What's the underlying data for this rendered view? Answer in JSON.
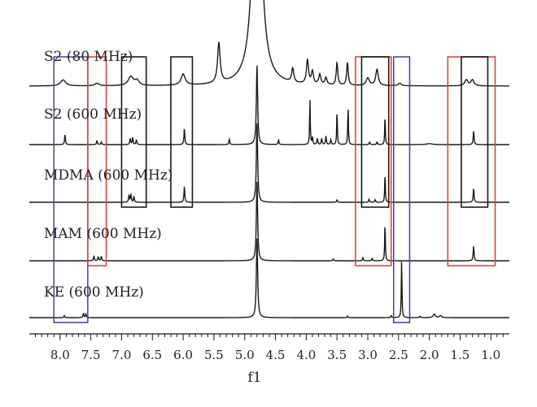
{
  "chart_data": {
    "type": "line",
    "title": "",
    "xlabel": "f1",
    "ylabel": "",
    "xlim": [
      8.5,
      0.7
    ],
    "x_reversed": true,
    "grid": false,
    "legend": "none",
    "x_ticks": [
      "8.0",
      "7.5",
      "7.0",
      "6.5",
      "6.0",
      "5.5",
      "5.0",
      "4.5",
      "4.0",
      "3.5",
      "3.0",
      "2.5",
      "2.0",
      "1.5",
      "1.0"
    ],
    "x_tick_values": [
      8.0,
      7.5,
      7.0,
      6.5,
      6.0,
      5.5,
      5.0,
      4.5,
      4.0,
      3.5,
      3.0,
      2.5,
      2.0,
      1.5,
      1.0
    ],
    "series": [
      {
        "name": "S2 (80 MHz)",
        "color": "#1a1a1a",
        "peaks": [
          {
            "x": 7.95,
            "h": 0.12,
            "w": 0.05
          },
          {
            "x": 7.4,
            "h": 0.05,
            "w": 0.04
          },
          {
            "x": 6.85,
            "h": 0.18,
            "w": 0.05
          },
          {
            "x": 6.75,
            "h": 0.1,
            "w": 0.04
          },
          {
            "x": 6.0,
            "h": 0.22,
            "w": 0.04
          },
          {
            "x": 5.42,
            "h": 0.8,
            "w": 0.025
          },
          {
            "x": 4.8,
            "h": 6.0,
            "w": 0.07
          },
          {
            "x": 4.22,
            "h": 0.28,
            "w": 0.02
          },
          {
            "x": 3.98,
            "h": 0.48,
            "w": 0.02
          },
          {
            "x": 3.9,
            "h": 0.25,
            "w": 0.02
          },
          {
            "x": 3.78,
            "h": 0.2,
            "w": 0.02
          },
          {
            "x": 3.68,
            "h": 0.14,
            "w": 0.02
          },
          {
            "x": 3.5,
            "h": 0.45,
            "w": 0.015
          },
          {
            "x": 3.33,
            "h": 0.45,
            "w": 0.015
          },
          {
            "x": 3.0,
            "h": 0.15,
            "w": 0.03
          },
          {
            "x": 2.85,
            "h": 0.32,
            "w": 0.025
          },
          {
            "x": 2.48,
            "h": 0.05,
            "w": 0.03
          },
          {
            "x": 1.4,
            "h": 0.12,
            "w": 0.03
          },
          {
            "x": 1.3,
            "h": 0.12,
            "w": 0.03
          }
        ]
      },
      {
        "name": "S2 (600 MHz)",
        "color": "#1a1a1a",
        "peaks": [
          {
            "x": 7.92,
            "h": 0.2,
            "w": 0.008
          },
          {
            "x": 7.4,
            "h": 0.08,
            "w": 0.008
          },
          {
            "x": 7.33,
            "h": 0.05,
            "w": 0.008
          },
          {
            "x": 6.86,
            "h": 0.12,
            "w": 0.008
          },
          {
            "x": 6.82,
            "h": 0.14,
            "w": 0.008
          },
          {
            "x": 6.76,
            "h": 0.1,
            "w": 0.008
          },
          {
            "x": 5.98,
            "h": 0.32,
            "w": 0.008
          },
          {
            "x": 5.25,
            "h": 0.11,
            "w": 0.008
          },
          {
            "x": 4.8,
            "h": 1.6,
            "w": 0.012
          },
          {
            "x": 4.45,
            "h": 0.09,
            "w": 0.008
          },
          {
            "x": 3.94,
            "h": 0.9,
            "w": 0.006
          },
          {
            "x": 3.9,
            "h": 0.14,
            "w": 0.008
          },
          {
            "x": 3.82,
            "h": 0.12,
            "w": 0.008
          },
          {
            "x": 3.75,
            "h": 0.12,
            "w": 0.008
          },
          {
            "x": 3.68,
            "h": 0.17,
            "w": 0.008
          },
          {
            "x": 3.6,
            "h": 0.1,
            "w": 0.008
          },
          {
            "x": 3.5,
            "h": 0.72,
            "w": 0.006
          },
          {
            "x": 3.32,
            "h": 0.8,
            "w": 0.006
          },
          {
            "x": 2.97,
            "h": 0.05,
            "w": 0.008
          },
          {
            "x": 2.85,
            "h": 0.05,
            "w": 0.008
          },
          {
            "x": 2.72,
            "h": 0.6,
            "w": 0.006
          },
          {
            "x": 2.0,
            "h": 0.02,
            "w": 0.05
          },
          {
            "x": 1.28,
            "h": 0.28,
            "w": 0.008
          }
        ]
      },
      {
        "name": "MDMA (600 MHz)",
        "color": "#1a1a1a",
        "peaks": [
          {
            "x": 6.88,
            "h": 0.14,
            "w": 0.008
          },
          {
            "x": 6.85,
            "h": 0.16,
            "w": 0.008
          },
          {
            "x": 6.8,
            "h": 0.12,
            "w": 0.008
          },
          {
            "x": 5.98,
            "h": 0.32,
            "w": 0.008
          },
          {
            "x": 4.8,
            "h": 1.6,
            "w": 0.012
          },
          {
            "x": 3.5,
            "h": 0.05,
            "w": 0.008
          },
          {
            "x": 2.98,
            "h": 0.06,
            "w": 0.008
          },
          {
            "x": 2.88,
            "h": 0.05,
            "w": 0.008
          },
          {
            "x": 2.72,
            "h": 0.6,
            "w": 0.006
          },
          {
            "x": 1.28,
            "h": 0.28,
            "w": 0.008
          }
        ]
      },
      {
        "name": "MAM (600 MHz)",
        "color": "#1a1a1a",
        "peaks": [
          {
            "x": 7.45,
            "h": 0.1,
            "w": 0.008
          },
          {
            "x": 7.38,
            "h": 0.08,
            "w": 0.008
          },
          {
            "x": 7.33,
            "h": 0.09,
            "w": 0.008
          },
          {
            "x": 4.8,
            "h": 1.6,
            "w": 0.012
          },
          {
            "x": 3.56,
            "h": 0.04,
            "w": 0.008
          },
          {
            "x": 3.08,
            "h": 0.06,
            "w": 0.008
          },
          {
            "x": 2.93,
            "h": 0.05,
            "w": 0.008
          },
          {
            "x": 2.72,
            "h": 0.8,
            "w": 0.006
          },
          {
            "x": 1.28,
            "h": 0.3,
            "w": 0.008
          }
        ]
      },
      {
        "name": "KE (600 MHz)",
        "color": "#1a1a1a",
        "peaks": [
          {
            "x": 7.93,
            "h": 0.04,
            "w": 0.008
          },
          {
            "x": 7.62,
            "h": 0.09,
            "w": 0.008
          },
          {
            "x": 7.58,
            "h": 0.07,
            "w": 0.008
          },
          {
            "x": 4.8,
            "h": 1.6,
            "w": 0.012
          },
          {
            "x": 3.33,
            "h": 0.03,
            "w": 0.008
          },
          {
            "x": 2.62,
            "h": 0.04,
            "w": 0.008
          },
          {
            "x": 2.45,
            "h": 1.2,
            "w": 0.006
          },
          {
            "x": 2.15,
            "h": 0.03,
            "w": 0.008
          },
          {
            "x": 1.92,
            "h": 0.07,
            "w": 0.02
          },
          {
            "x": 1.82,
            "h": 0.04,
            "w": 0.02
          }
        ]
      }
    ],
    "highlight_boxes": [
      {
        "color": "#4a4aa8",
        "x_range": [
          8.1,
          7.55
        ],
        "rows": [
          0,
          4
        ]
      },
      {
        "color": "#e8413b",
        "x_range": [
          7.55,
          7.25
        ],
        "rows": [
          0,
          3
        ]
      },
      {
        "color": "#1a1a1a",
        "x_range": [
          7.0,
          6.6
        ],
        "rows": [
          0,
          2
        ]
      },
      {
        "color": "#1a1a1a",
        "x_range": [
          6.2,
          5.85
        ],
        "rows": [
          0,
          2
        ]
      },
      {
        "color": "#e8413b",
        "x_range": [
          3.2,
          2.62
        ],
        "rows": [
          0,
          3
        ]
      },
      {
        "color": "#1a1a1a",
        "x_range": [
          3.1,
          2.66
        ],
        "rows": [
          0,
          2
        ]
      },
      {
        "color": "#4a4aa8",
        "x_range": [
          2.58,
          2.32
        ],
        "rows": [
          0,
          4
        ]
      },
      {
        "color": "#e8413b",
        "x_range": [
          1.7,
          0.93
        ],
        "rows": [
          0,
          3
        ]
      },
      {
        "color": "#1a1a1a",
        "x_range": [
          1.48,
          1.05
        ],
        "rows": [
          0,
          2
        ]
      }
    ]
  }
}
